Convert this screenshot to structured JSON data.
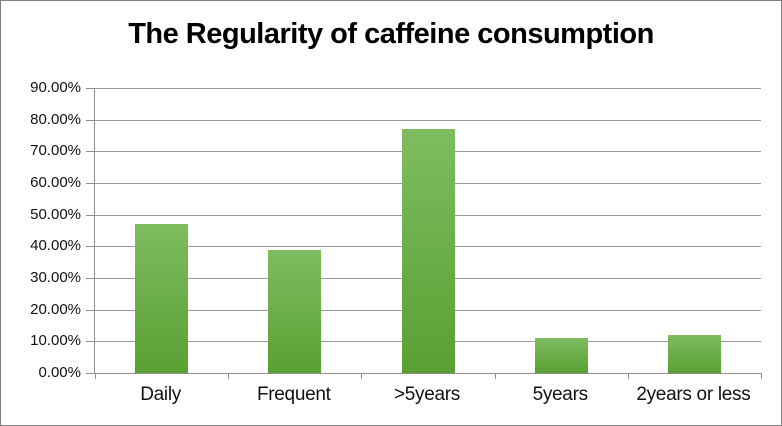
{
  "chart_data": {
    "type": "bar",
    "title": "The Regularity of caffeine consumption",
    "categories": [
      "Daily",
      "Frequent",
      ">5years",
      "5years",
      "2years or less"
    ],
    "values": [
      47,
      39,
      77,
      11,
      12
    ],
    "value_unit": "%",
    "xlabel": "",
    "ylabel": "",
    "ylim": [
      0,
      90
    ],
    "ytick_step": 10,
    "ytick_labels": [
      "0.00%",
      "10.00%",
      "20.00%",
      "30.00%",
      "40.00%",
      "50.00%",
      "60.00%",
      "70.00%",
      "80.00%",
      "90.00%"
    ],
    "grid": true,
    "legend_position": "none",
    "colors": {
      "bar_gradient_top": "#7fbc60",
      "bar_gradient_bottom": "#59a032",
      "gridline": "#9b9b9b",
      "axis_line": "#8e8e8e",
      "text": "#111111",
      "title_text": "#000000",
      "background": "#ffffff",
      "outer_border": "#808080"
    }
  }
}
